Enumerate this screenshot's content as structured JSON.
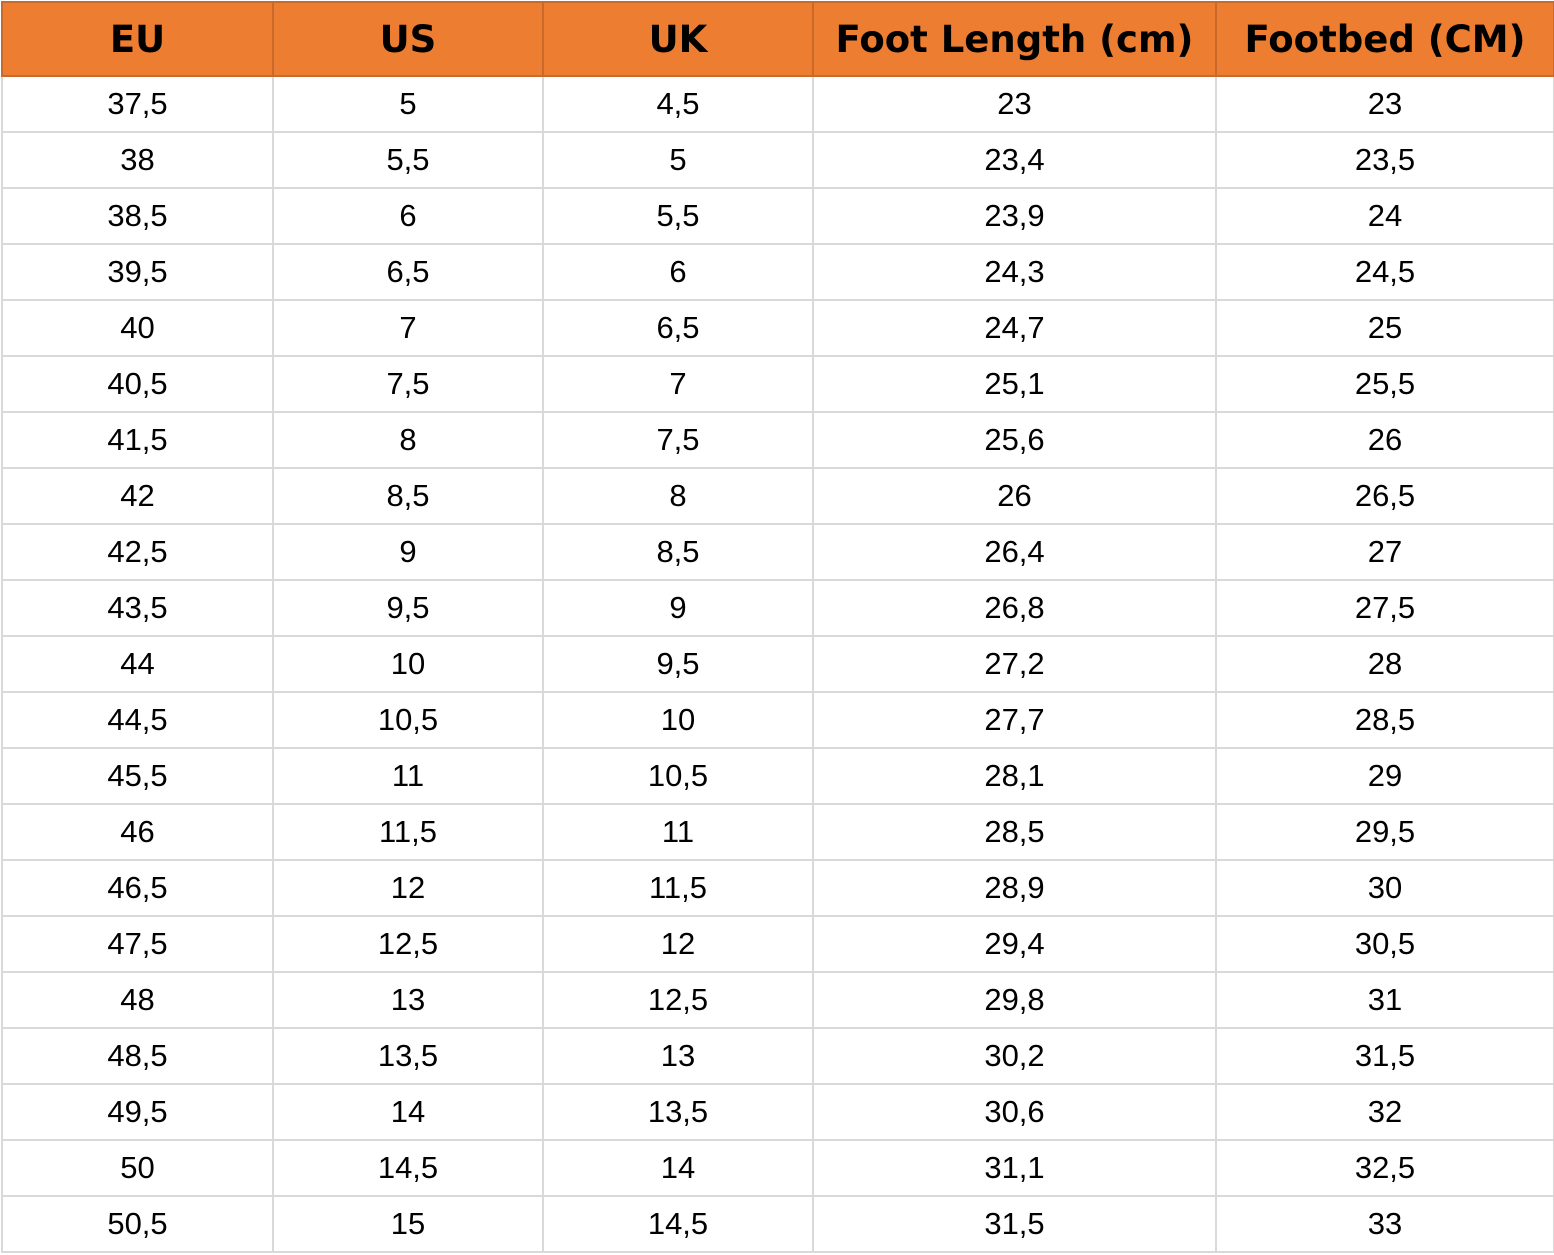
{
  "header_color": "#ED7D31",
  "headers": [
    "EU",
    "US",
    "UK",
    "Foot Length (cm)",
    "Footbed (CM)"
  ],
  "rows": [
    [
      "37,5",
      "5",
      "4,5",
      "23",
      "23"
    ],
    [
      "38",
      "5,5",
      "5",
      "23,4",
      "23,5"
    ],
    [
      "38,5",
      "6",
      "5,5",
      "23,9",
      "24"
    ],
    [
      "39,5",
      "6,5",
      "6",
      "24,3",
      "24,5"
    ],
    [
      "40",
      "7",
      "6,5",
      "24,7",
      "25"
    ],
    [
      "40,5",
      "7,5",
      "7",
      "25,1",
      "25,5"
    ],
    [
      "41,5",
      "8",
      "7,5",
      "25,6",
      "26"
    ],
    [
      "42",
      "8,5",
      "8",
      "26",
      "26,5"
    ],
    [
      "42,5",
      "9",
      "8,5",
      "26,4",
      "27"
    ],
    [
      "43,5",
      "9,5",
      "9",
      "26,8",
      "27,5"
    ],
    [
      "44",
      "10",
      "9,5",
      "27,2",
      "28"
    ],
    [
      "44,5",
      "10,5",
      "10",
      "27,7",
      "28,5"
    ],
    [
      "45,5",
      "11",
      "10,5",
      "28,1",
      "29"
    ],
    [
      "46",
      "11,5",
      "11",
      "28,5",
      "29,5"
    ],
    [
      "46,5",
      "12",
      "11,5",
      "28,9",
      "30"
    ],
    [
      "47,5",
      "12,5",
      "12",
      "29,4",
      "30,5"
    ],
    [
      "48",
      "13",
      "12,5",
      "29,8",
      "31"
    ],
    [
      "48,5",
      "13,5",
      "13",
      "30,2",
      "31,5"
    ],
    [
      "49,5",
      "14",
      "13,5",
      "30,6",
      "32"
    ],
    [
      "50",
      "14,5",
      "14",
      "31,1",
      "32,5"
    ],
    [
      "50,5",
      "15",
      "14,5",
      "31,5",
      "33"
    ]
  ]
}
